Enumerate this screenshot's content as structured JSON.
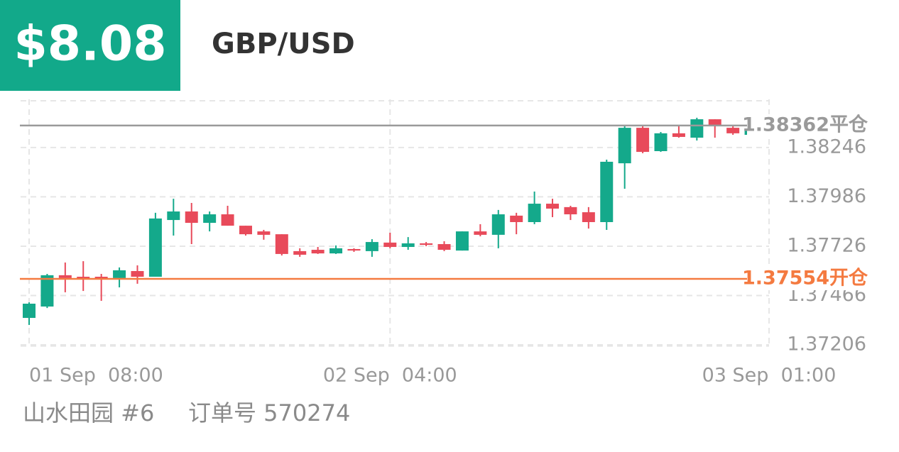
{
  "header": {
    "amount": "$8.08",
    "symbol": "GBP/USD"
  },
  "footer": {
    "account": "山水田园 #6",
    "order": "订单号 570274"
  },
  "chart_data": {
    "type": "candlestick",
    "categories": [
      "01 Sep  08:00",
      null,
      null,
      null,
      null,
      null,
      null,
      null,
      null,
      null,
      null,
      null,
      null,
      null,
      null,
      null,
      null,
      null,
      null,
      null,
      "02 Sep  04:00",
      null,
      null,
      null,
      null,
      null,
      null,
      null,
      null,
      null,
      null,
      null,
      null,
      null,
      null,
      null,
      null,
      null,
      null,
      null,
      null,
      "03 Sep  01:00"
    ],
    "open": [
      1.37348,
      1.37408,
      1.37573,
      1.37565,
      1.37565,
      1.37558,
      1.37595,
      1.37565,
      1.37864,
      1.37909,
      1.37849,
      1.37894,
      1.37834,
      1.37804,
      1.37789,
      1.377,
      1.37707,
      1.37688,
      1.37711,
      1.377,
      1.37745,
      1.37722,
      1.37741,
      1.37737,
      1.37703,
      1.37804,
      1.37786,
      1.37887,
      1.37853,
      1.3795,
      1.37932,
      1.37905,
      1.37853,
      1.38163,
      1.3835,
      1.38227,
      1.38321,
      1.38298,
      1.38395,
      1.3835,
      1.38313,
      null
    ],
    "high": [
      1.3743,
      1.3758,
      1.3764,
      1.37647,
      1.3758,
      1.37614,
      1.37625,
      1.37902,
      1.37976,
      1.37954,
      1.37909,
      1.37939,
      1.37834,
      1.37812,
      1.37789,
      1.37715,
      1.37722,
      1.3773,
      1.37715,
      1.37763,
      1.37797,
      1.37774,
      1.37748,
      1.37752,
      1.37804,
      1.37842,
      1.37917,
      1.37902,
      1.38014,
      1.37976,
      1.37939,
      1.37932,
      1.38182,
      1.38358,
      1.38358,
      1.38328,
      1.38365,
      1.38403,
      1.38395,
      1.38365,
      1.38343,
      null
    ],
    "low": [
      1.37311,
      1.374,
      1.37483,
      1.3749,
      1.37438,
      1.37509,
      1.37528,
      1.37565,
      1.37782,
      1.37737,
      1.37804,
      1.37834,
      1.37782,
      1.3776,
      1.37677,
      1.3767,
      1.37685,
      1.37685,
      1.37696,
      1.3767,
      1.37715,
      1.37707,
      1.37726,
      1.377,
      1.37703,
      1.37778,
      1.37715,
      1.37789,
      1.37842,
      1.37879,
      1.37864,
      1.37819,
      1.37812,
      1.38029,
      1.38216,
      1.38223,
      1.38298,
      1.38283,
      1.38298,
      1.38313,
      1.38313,
      null
    ],
    "close": [
      1.37423,
      1.37573,
      1.37558,
      1.37558,
      1.37554,
      1.37599,
      1.37565,
      1.37872,
      1.37909,
      1.37849,
      1.37894,
      1.37834,
      1.37789,
      1.37786,
      1.37685,
      1.37681,
      1.37688,
      1.37715,
      1.37703,
      1.37748,
      1.37722,
      1.37741,
      1.37733,
      1.37707,
      1.37804,
      1.37786,
      1.37894,
      1.37853,
      1.3795,
      1.37924,
      1.37894,
      1.37853,
      1.38171,
      1.3835,
      1.38223,
      1.38321,
      1.38302,
      1.38395,
      1.38358,
      1.38321,
      1.38335,
      null
    ],
    "up_color": "#14a98b",
    "down_color": "#e84a5a",
    "ylim": [
      1.372,
      1.385
    ],
    "yticks": [
      1.37206,
      1.37466,
      1.37726,
      1.37986,
      1.38246
    ],
    "grid": true,
    "ref_lines": [
      {
        "value": 1.38362,
        "label": "1.38362平仓",
        "color": "#9a9a9a"
      },
      {
        "value": 1.37554,
        "label": "1.37554开仓",
        "color": "#f47a40"
      }
    ]
  }
}
